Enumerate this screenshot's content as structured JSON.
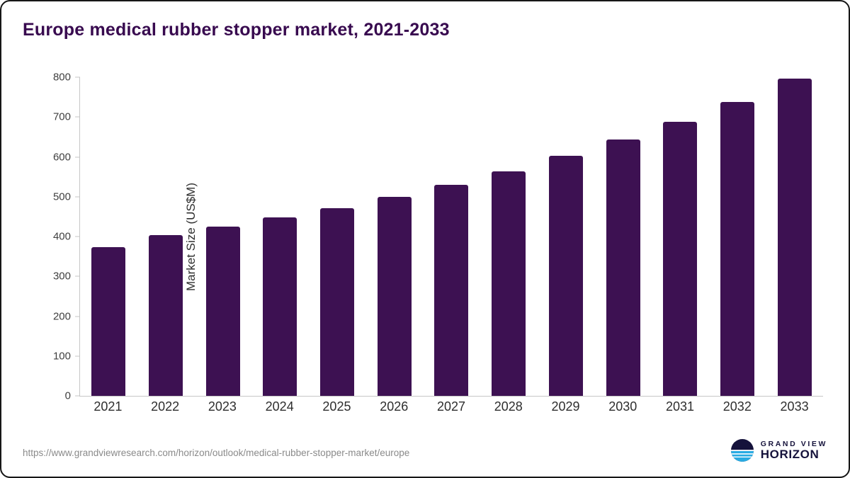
{
  "chart_data": {
    "type": "bar",
    "title": "Europe medical rubber stopper market, 2021-2033",
    "categories": [
      "2021",
      "2022",
      "2023",
      "2024",
      "2025",
      "2026",
      "2027",
      "2028",
      "2029",
      "2030",
      "2031",
      "2032",
      "2033"
    ],
    "values": [
      373,
      404,
      425,
      448,
      472,
      500,
      530,
      564,
      602,
      643,
      688,
      738,
      796
    ],
    "xlabel": "",
    "ylabel": "Market Size (US$M)",
    "ylim": [
      0,
      800
    ],
    "yticks": [
      0,
      100,
      200,
      300,
      400,
      500,
      600,
      700,
      800
    ],
    "grid": false,
    "legend": false,
    "bar_color": "#3D1152"
  },
  "footer": {
    "source_url": "https://www.grandviewresearch.com/horizon/outlook/medical-rubber-stopper-market/europe",
    "logo_line1": "GRAND VIEW",
    "logo_line2": "HORIZON",
    "logo_navy": "#15123B",
    "logo_blue": "#29ABE2"
  }
}
